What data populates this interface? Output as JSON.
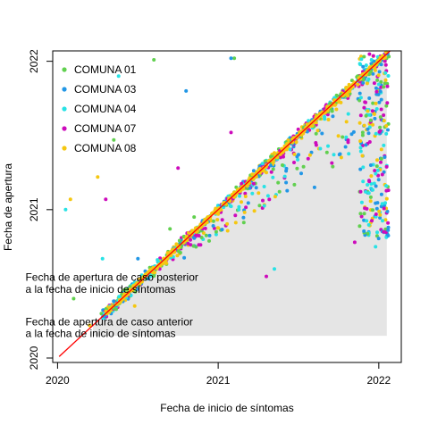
{
  "chart_data": {
    "type": "scatter",
    "xlabel": "Fecha de inicio de síntomas",
    "ylabel": "Fecha de apertura",
    "xlim": [
      2019.97,
      2022.14
    ],
    "ylim": [
      2019.97,
      2022.07
    ],
    "x_ticks": [
      {
        "value": 2020,
        "label": "2020"
      },
      {
        "value": 2021,
        "label": "2021"
      },
      {
        "value": 2022,
        "label": "2022"
      }
    ],
    "y_ticks": [
      {
        "value": 2020,
        "label": "2020"
      },
      {
        "value": 2021,
        "label": "2021"
      },
      {
        "value": 2022,
        "label": "2022"
      }
    ],
    "legend_position": "top-left",
    "shaded_region": {
      "description": "area below identity line",
      "color": "#e5e5e5"
    },
    "reference_line": {
      "x": [
        2020.01,
        2022.07
      ],
      "y": [
        2020.01,
        2022.07
      ],
      "color": "#ff0000"
    },
    "annotations": [
      {
        "text": "Fecha de apertura de caso posterior",
        "x": 2019.8,
        "y": 2020.52
      },
      {
        "text": "a la fecha de inicio de síntomas",
        "x": 2019.8,
        "y": 2020.44
      },
      {
        "text": "Fecha de apertura de caso anterior",
        "x": 2019.8,
        "y": 2020.22
      },
      {
        "text": "a la fecha de inicio de síntomas",
        "x": 2019.8,
        "y": 2020.14
      }
    ],
    "series": [
      {
        "name": "COMUNA 01",
        "color": "#61d04f",
        "points": [
          [
            2020.6,
            2022.01
          ],
          [
            2021.1,
            2022.02
          ],
          [
            2020.35,
            2021.47
          ],
          [
            2020.1,
            2020.4
          ],
          [
            2021.9,
            2021.52
          ],
          [
            2020.7,
            2020.87
          ],
          [
            2021.4,
            2021.3
          ],
          [
            2020.85,
            2020.95
          ]
        ]
      },
      {
        "name": "COMUNA 03",
        "color": "#2297e6",
        "points": [
          [
            2021.08,
            2022.02
          ],
          [
            2020.8,
            2021.8
          ],
          [
            2021.95,
            2021.3
          ],
          [
            2021.5,
            2021.37
          ],
          [
            2021.6,
            2021.15
          ],
          [
            2020.5,
            2020.67
          ]
        ]
      },
      {
        "name": "COMUNA 04",
        "color": "#28e2e5",
        "points": [
          [
            2020.38,
            2021.9
          ],
          [
            2020.05,
            2021.0
          ],
          [
            2020.28,
            2020.67
          ],
          [
            2021.98,
            2020.75
          ],
          [
            2021.35,
            2020.6
          ],
          [
            2021.72,
            2021.37
          ]
        ]
      },
      {
        "name": "COMUNA 07",
        "color": "#cd0bbc",
        "points": [
          [
            2020.3,
            2021.07
          ],
          [
            2021.08,
            2021.52
          ],
          [
            2020.75,
            2021.28
          ],
          [
            2021.85,
            2020.78
          ],
          [
            2021.3,
            2020.55
          ],
          [
            2022.03,
            2020.85
          ]
        ]
      },
      {
        "name": "COMUNA 08",
        "color": "#f5c710",
        "points": [
          [
            2020.08,
            2021.07
          ],
          [
            2020.25,
            2021.22
          ],
          [
            2020.48,
            2020.35
          ],
          [
            2021.0,
            2020.97
          ],
          [
            2021.3,
            2021.25
          ],
          [
            2020.2,
            2020.22
          ]
        ]
      }
    ]
  }
}
